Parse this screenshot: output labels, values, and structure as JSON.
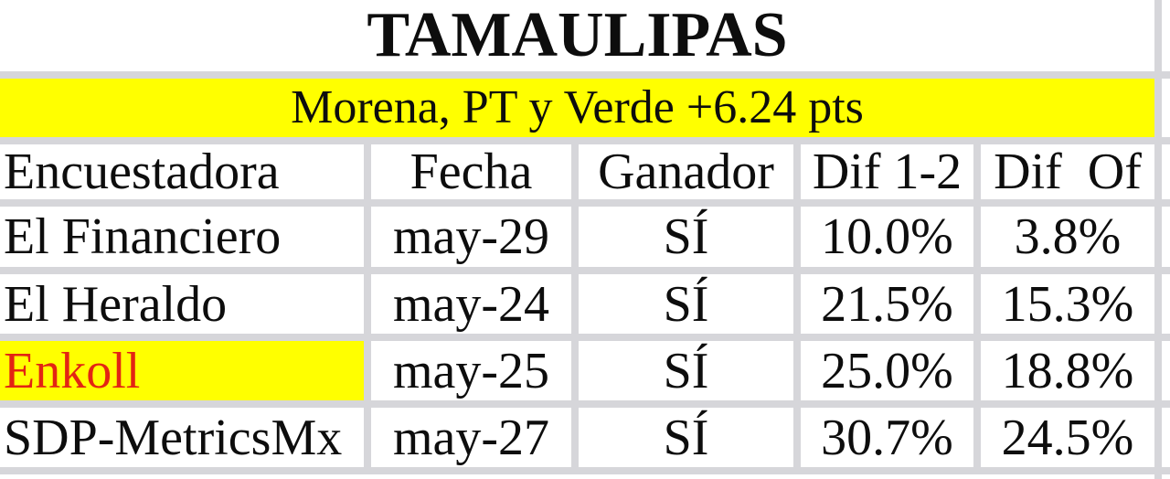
{
  "title": "TAMAULIPAS",
  "banner": "Morena, PT y Verde +6.24 pts",
  "table": {
    "headers": [
      "Encuestadora",
      "Fecha",
      "Ganador",
      "Dif 1-2",
      "Dif  Of"
    ],
    "rows": [
      {
        "encuestadora": "El Financiero",
        "fecha": "may-29",
        "ganador": "SÍ",
        "dif_1_2": "10.0%",
        "dif_of": "3.8%",
        "highlight": false
      },
      {
        "encuestadora": "El Heraldo",
        "fecha": "may-24",
        "ganador": "SÍ",
        "dif_1_2": "21.5%",
        "dif_of": "15.3%",
        "highlight": false
      },
      {
        "encuestadora": "Enkoll",
        "fecha": "may-25",
        "ganador": "SÍ",
        "dif_1_2": "25.0%",
        "dif_of": "18.8%",
        "highlight": true
      },
      {
        "encuestadora": "SDP-MetricsMx",
        "fecha": "may-27",
        "ganador": "SÍ",
        "dif_1_2": "30.7%",
        "dif_of": "24.5%",
        "highlight": false
      }
    ]
  },
  "colors": {
    "highlight_bg": "#ffff00",
    "highlight_text": "#e32413",
    "grid_line": "#d6d6da",
    "text": "#0d0d0d"
  },
  "chart_data": {
    "type": "table",
    "title": "TAMAULIPAS",
    "subtitle": "Morena, PT y Verde +6.24 pts",
    "columns": [
      "Encuestadora",
      "Fecha",
      "Ganador",
      "Dif 1-2",
      "Dif Of"
    ],
    "rows": [
      [
        "El Financiero",
        "may-29",
        "SÍ",
        "10.0%",
        "3.8%"
      ],
      [
        "El Heraldo",
        "may-24",
        "SÍ",
        "21.5%",
        "15.3%"
      ],
      [
        "Enkoll",
        "may-25",
        "SÍ",
        "25.0%",
        "18.8%"
      ],
      [
        "SDP-MetricsMx",
        "may-27",
        "SÍ",
        "30.7%",
        "24.5%"
      ]
    ],
    "highlighted_row": "Enkoll",
    "layout": {
      "subtitle_band": "yellow",
      "grid": "light-gray bands",
      "header_row": true
    }
  }
}
